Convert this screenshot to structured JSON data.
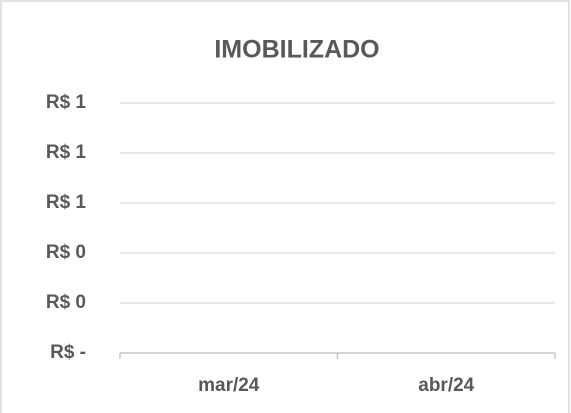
{
  "chart_data": {
    "type": "line",
    "title": "IMOBILIZADO",
    "categories": [
      "mar/24",
      "abr/24"
    ],
    "ylim": [
      0,
      1
    ],
    "yticks": [
      {
        "value": 0,
        "label": "R$ -"
      },
      {
        "value": 0.2,
        "label": "R$ 0"
      },
      {
        "value": 0.4,
        "label": "R$ 0"
      },
      {
        "value": 0.6,
        "label": "R$ 1"
      },
      {
        "value": 0.8,
        "label": "R$ 1"
      },
      {
        "value": 1,
        "label": "R$ 1"
      }
    ],
    "grid": true
  }
}
